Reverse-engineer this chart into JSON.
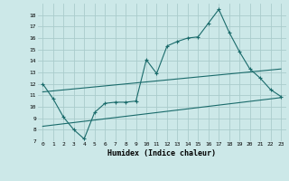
{
  "title": "",
  "xlabel": "Humidex (Indice chaleur)",
  "ylabel": "",
  "bg_color": "#cce8e8",
  "grid_color": "#aacccc",
  "line_color": "#1a6b6b",
  "xlim": [
    -0.5,
    23.5
  ],
  "ylim": [
    7,
    19
  ],
  "yticks": [
    7,
    8,
    9,
    10,
    11,
    12,
    13,
    14,
    15,
    16,
    17,
    18
  ],
  "xticks": [
    0,
    1,
    2,
    3,
    4,
    5,
    6,
    7,
    8,
    9,
    10,
    11,
    12,
    13,
    14,
    15,
    16,
    17,
    18,
    19,
    20,
    21,
    22,
    23
  ],
  "line1_x": [
    0,
    1,
    2,
    3,
    4,
    5,
    6,
    7,
    8,
    9,
    10,
    11,
    12,
    13,
    14,
    15,
    16,
    17,
    18,
    19,
    20,
    21,
    22,
    23
  ],
  "line1_y": [
    12.0,
    10.7,
    9.1,
    8.0,
    7.2,
    9.5,
    10.3,
    10.4,
    10.4,
    10.5,
    14.1,
    12.9,
    15.3,
    15.7,
    16.0,
    16.1,
    17.3,
    18.5,
    16.5,
    14.8,
    13.3,
    12.5,
    11.5,
    10.9
  ],
  "line2_x": [
    0,
    23
  ],
  "line2_y": [
    11.3,
    13.3
  ],
  "line3_x": [
    0,
    23
  ],
  "line3_y": [
    8.3,
    10.8
  ]
}
